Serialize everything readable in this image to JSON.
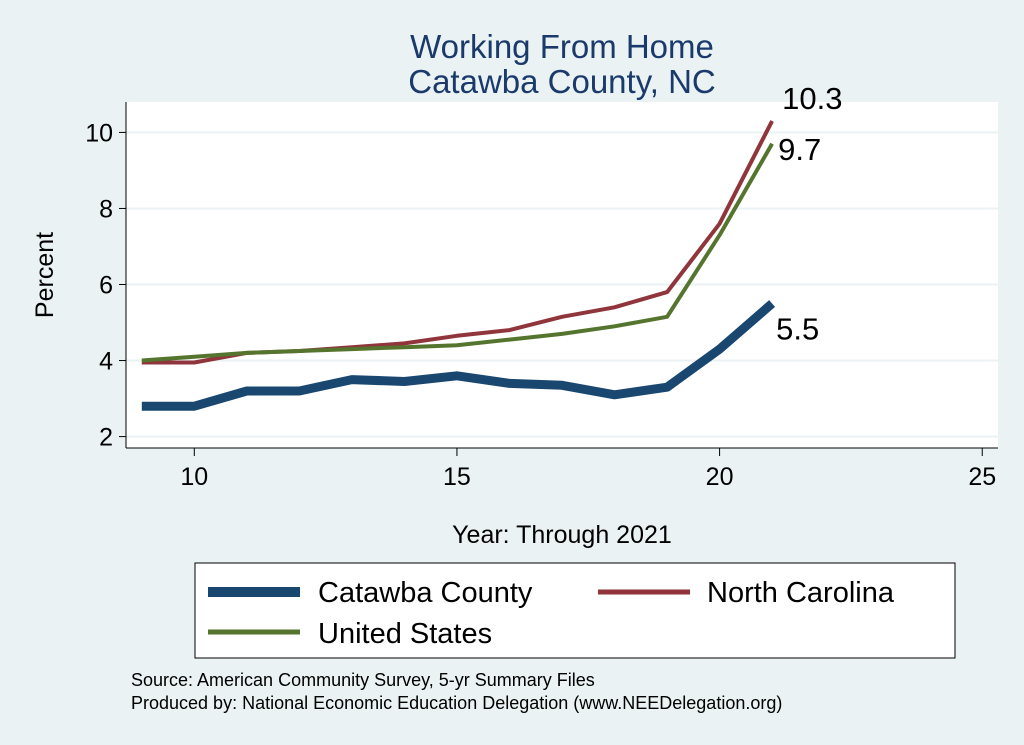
{
  "chart_data": {
    "type": "line",
    "title": [
      "Working From Home",
      "Catawba County, NC"
    ],
    "xlabel": "Year: Through 2021",
    "ylabel": "Percent",
    "xlim": [
      8.7,
      25.3
    ],
    "ylim": [
      1.7,
      10.8
    ],
    "xticks": [
      10,
      15,
      20,
      25
    ],
    "yticks": [
      2,
      4,
      6,
      8,
      10
    ],
    "grid": "horizontal",
    "legend_position": "bottom",
    "series": [
      {
        "name": "Catawba County",
        "color": "#1a476f",
        "width": "thick",
        "x": [
          9,
          10,
          11,
          12,
          13,
          14,
          15,
          16,
          17,
          18,
          19,
          20,
          21
        ],
        "y": [
          2.8,
          2.8,
          3.2,
          3.2,
          3.5,
          3.45,
          3.6,
          3.4,
          3.35,
          3.1,
          3.3,
          4.3,
          5.5
        ],
        "end_label": "5.5"
      },
      {
        "name": "North Carolina",
        "color": "#90353b",
        "width": "medium",
        "x": [
          9,
          10,
          11,
          12,
          13,
          14,
          15,
          16,
          17,
          18,
          19,
          20,
          21
        ],
        "y": [
          3.95,
          3.95,
          4.2,
          4.25,
          4.35,
          4.45,
          4.65,
          4.8,
          5.15,
          5.4,
          5.8,
          7.6,
          10.3
        ],
        "end_label": "10.3"
      },
      {
        "name": "United States",
        "color": "#55752f",
        "width": "medium",
        "x": [
          9,
          10,
          11,
          12,
          13,
          14,
          15,
          16,
          17,
          18,
          19,
          20,
          21
        ],
        "y": [
          4.0,
          4.1,
          4.2,
          4.25,
          4.3,
          4.35,
          4.4,
          4.55,
          4.7,
          4.9,
          5.15,
          7.3,
          9.7
        ],
        "end_label": "9.7"
      }
    ]
  },
  "notes": [
    "Source: American Community Survey, 5-yr Summary Files",
    "Produced by: National Economic Education Delegation (www.NEEDelegation.org)"
  ]
}
